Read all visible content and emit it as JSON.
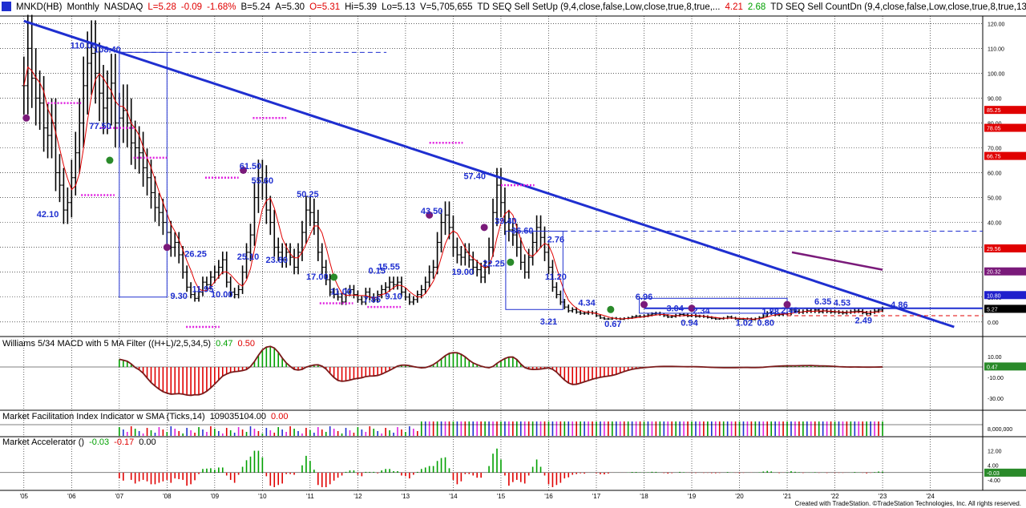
{
  "header": {
    "symbol": "MNKD(HB)",
    "interval": "Monthly",
    "exchange": "NASDAQ",
    "last": "L=5.28",
    "change": "-0.09",
    "change_pct": "-1.68%",
    "bid": "B=5.24",
    "ask": "A=5.30",
    "open": "O=5.31",
    "high": "Hi=5.39",
    "low": "Lo=5.13",
    "volume": "V=5,705,655",
    "study1": "TD SEQ Sell SetUp (9,4,close,false,Low,close,true,8,true,...",
    "study1_v1": "4.21",
    "study1_v2": "2.68",
    "study2": "TD SEQ Sell CountDn (9,4,close,false,Low,close,true,8,true,13,2,...",
    "study2_tail": "TD"
  },
  "panels": {
    "macd": {
      "title": "Williams 5/34 MACD with 5 MA Filter ((H+L)/2,5,34,5)",
      "v1": "0.47",
      "v2": "0.50"
    },
    "mfi": {
      "title": "Market Facilitation Index Indicator w SMA (Ticks,14)",
      "v1": "109035104.00",
      "v2": "0.00"
    },
    "acc": {
      "title": "Market Accelerator ()",
      "v1": "-0.03",
      "v2": "-0.17",
      "v3": "0.00"
    }
  },
  "footer": "Created with TradeStation. ©TradeStation Technologies, Inc. All rights reserved.",
  "chart_data": {
    "type": "bar",
    "series_type": "ohlc",
    "price_axis": {
      "ticks": [
        120,
        110,
        100,
        90,
        80,
        70,
        60,
        50,
        40,
        30,
        20,
        10,
        0
      ],
      "tick_labels": [
        "120.00",
        "110.00",
        "100.00",
        "90.00",
        "80.00",
        "70.00",
        "60.00",
        "50.00",
        "40.00",
        "30.00",
        "20.00",
        "10.00",
        "0.00"
      ],
      "ylim": [
        -2,
        123
      ]
    },
    "x_axis": {
      "labels": [
        "'05",
        "'06",
        "'07",
        "'08",
        "'09",
        "'10",
        "'11",
        "'12",
        "'13",
        "'14",
        "'15",
        "'16",
        "'17",
        "'18",
        "'19",
        "'20",
        "'21",
        "'22",
        "'23",
        "'24"
      ],
      "years": [
        2005,
        2006,
        2007,
        2008,
        2009,
        2010,
        2011,
        2012,
        2013,
        2014,
        2015,
        2016,
        2017,
        2018,
        2019,
        2020,
        2021,
        2022,
        2023,
        2024
      ]
    },
    "price_badges": [
      {
        "value": "85.25",
        "color": "#e00000"
      },
      {
        "value": "78.05",
        "color": "#e00000"
      },
      {
        "value": "66.75",
        "color": "#e00000"
      },
      {
        "value": "29.56",
        "color": "#e00000"
      },
      {
        "value": "20.32",
        "color": "#7a1a7a"
      },
      {
        "value": "10.80",
        "color": "#1f1fcc"
      },
      {
        "value": "5.27",
        "color": "#000000"
      }
    ],
    "price_annotations": [
      {
        "text": "110.00",
        "x": 2006.25,
        "y": 110
      },
      {
        "text": "108.40",
        "x": 2006.75,
        "y": 108.4
      },
      {
        "text": "77.50",
        "x": 2006.6,
        "y": 77.5
      },
      {
        "text": "42.10",
        "x": 2005.5,
        "y": 42.1
      },
      {
        "text": "61.50",
        "x": 2009.75,
        "y": 61.5
      },
      {
        "text": "55.60",
        "x": 2010.0,
        "y": 55.6
      },
      {
        "text": "26.25",
        "x": 2008.6,
        "y": 26.25
      },
      {
        "text": "25.10",
        "x": 2009.7,
        "y": 25.1
      },
      {
        "text": "23.80",
        "x": 2010.3,
        "y": 23.8
      },
      {
        "text": "11.95",
        "x": 2008.75,
        "y": 11.95
      },
      {
        "text": "10.00",
        "x": 2009.15,
        "y": 10.0
      },
      {
        "text": "9.30",
        "x": 2008.25,
        "y": 9.3
      },
      {
        "text": "50.25",
        "x": 2010.95,
        "y": 50.25
      },
      {
        "text": "17.00",
        "x": 2011.15,
        "y": 17.0
      },
      {
        "text": "11.00",
        "x": 2011.65,
        "y": 11.0
      },
      {
        "text": "7.85",
        "x": 2012.3,
        "y": 7.85
      },
      {
        "text": "9.10",
        "x": 2012.75,
        "y": 9.1
      },
      {
        "text": "15.55",
        "x": 2012.65,
        "y": 21.0
      },
      {
        "text": "43.50",
        "x": 2013.55,
        "y": 43.5
      },
      {
        "text": "57.40",
        "x": 2014.45,
        "y": 57.4
      },
      {
        "text": "39.40",
        "x": 2015.1,
        "y": 39.4
      },
      {
        "text": "36.60",
        "x": 2015.45,
        "y": 35.6
      },
      {
        "text": "19.00",
        "x": 2014.2,
        "y": 19.0
      },
      {
        "text": "22.25",
        "x": 2014.85,
        "y": 22.25
      },
      {
        "text": "2.76",
        "x": 2016.15,
        "y": 32.0
      },
      {
        "text": "11.20",
        "x": 2016.15,
        "y": 17.0
      },
      {
        "text": "3.21",
        "x": 2016.0,
        "y": -1.0
      },
      {
        "text": "4.34",
        "x": 2016.8,
        "y": 6.5
      },
      {
        "text": "6.96",
        "x": 2018.0,
        "y": 9.0
      },
      {
        "text": "0.67",
        "x": 2017.35,
        "y": -2.0
      },
      {
        "text": "3.04",
        "x": 2018.65,
        "y": 4.3
      },
      {
        "text": "2.34",
        "x": 2019.2,
        "y": 3.3
      },
      {
        "text": "0.94",
        "x": 2018.95,
        "y": -1.5
      },
      {
        "text": "1.02",
        "x": 2020.1,
        "y": -1.5
      },
      {
        "text": "0.80",
        "x": 2020.55,
        "y": -1.5
      },
      {
        "text": "1.88",
        "x": 2020.65,
        "y": 3.0
      },
      {
        "text": "2.48",
        "x": 2021.05,
        "y": 3.5
      },
      {
        "text": "6.35",
        "x": 2021.75,
        "y": 7.0
      },
      {
        "text": "4.53",
        "x": 2022.15,
        "y": 6.5
      },
      {
        "text": "4.86",
        "x": 2023.35,
        "y": 5.8
      },
      {
        "text": "2.49",
        "x": 2022.6,
        "y": -0.5
      },
      {
        "text": "0.15",
        "x": 2012.4,
        "y": 19.5
      }
    ],
    "trendline": {
      "x": [
        2005.0,
        2024.5
      ],
      "y": [
        121.0,
        -2.0
      ]
    },
    "hline": {
      "y": 5.5
    },
    "hline2": {
      "y": 36.5
    },
    "dashline": {
      "x": [
        2007.0,
        2012.6
      ],
      "y": [
        108.4,
        108.4
      ]
    },
    "macd_axis": {
      "ticks": [
        10,
        -10,
        -30
      ],
      "tick_labels": [
        "10.00",
        "-10.00",
        "-30.00"
      ],
      "badge": "0.47"
    },
    "mfi_axis": {
      "ticks": [
        8000000
      ],
      "tick_labels": [
        "8,000,000"
      ]
    },
    "acc_axis": {
      "ticks": [
        12,
        4,
        -4
      ],
      "tick_labels": [
        "12.00",
        "4.00",
        "-4.00"
      ],
      "badge": "-0.03"
    },
    "monthly_closes": [
      95,
      110,
      98,
      90,
      88,
      78,
      75,
      80,
      60,
      55,
      45,
      48,
      58,
      68,
      80,
      95,
      104,
      108,
      100,
      92,
      86,
      90,
      96,
      80,
      82,
      85,
      80,
      72,
      70,
      68,
      62,
      58,
      52,
      46,
      44,
      40,
      36,
      30,
      32,
      27,
      20,
      14,
      11,
      9.5,
      12,
      16,
      15,
      18,
      20,
      22,
      25,
      16,
      12,
      11,
      13,
      20,
      28,
      35,
      50,
      58,
      56,
      45,
      40,
      30,
      28,
      25,
      28,
      26,
      22,
      28,
      36,
      45,
      44,
      40,
      28,
      22,
      17,
      12,
      11,
      10,
      8,
      12,
      13,
      11,
      9,
      8,
      12,
      10,
      9,
      11,
      13,
      14,
      16,
      15,
      16,
      12,
      10,
      8,
      9,
      11,
      13,
      16,
      20,
      22,
      32,
      40,
      43,
      38,
      30,
      27,
      26,
      28,
      25,
      22,
      21,
      18,
      22,
      30,
      44,
      55,
      48,
      40,
      37,
      35,
      30,
      24,
      20,
      26,
      32,
      38,
      34,
      28,
      22,
      14,
      11,
      8,
      6,
      4.5,
      5,
      4,
      3.5,
      3.5,
      3.8,
      3.6,
      2.5,
      1.6,
      1.2,
      1.2,
      1.5,
      1.3,
      1.1,
      1.4,
      1.6,
      2.0,
      2.3,
      2.1,
      2.4,
      2.8,
      3.2,
      3.4,
      3.0,
      2.5,
      2.0,
      2.2,
      2.6,
      3.0,
      2.8,
      2.4,
      2.6,
      2.2,
      2.3,
      2.1,
      1.8,
      1.5,
      1.2,
      1.3,
      1.5,
      2.0,
      1.6,
      1.2,
      1.1,
      1.2,
      1.3,
      0.9,
      1.3,
      1.8,
      2.4,
      3.6,
      3.4,
      2.8,
      2.9,
      3.2,
      3.3,
      4.8,
      4.3,
      3.9,
      4.2,
      4.5,
      4.3,
      4.8,
      4.1,
      4.5,
      4.2,
      4.0,
      4.0,
      3.8,
      3.6,
      3.9,
      4.1,
      4.4,
      4.3,
      3.7,
      3.3,
      3.9,
      4.4,
      4.8,
      5.3
    ]
  }
}
